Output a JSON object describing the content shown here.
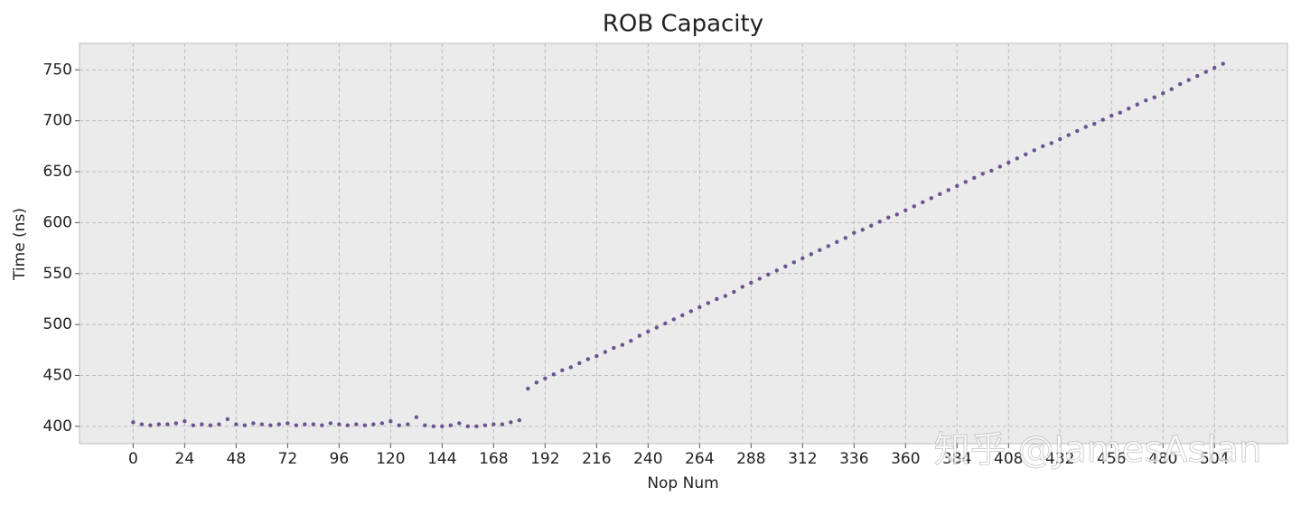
{
  "chart_data": {
    "type": "scatter",
    "title": "ROB Capacity",
    "x_label": "Nop Num",
    "y_label": "Time (ns)",
    "watermark": "知乎 @JamesAslan",
    "color": "#6b5290",
    "grid": true,
    "xlim": [
      -25,
      538
    ],
    "ylim": [
      383,
      776
    ],
    "xticks": [
      0,
      24,
      48,
      72,
      96,
      120,
      144,
      168,
      192,
      216,
      240,
      264,
      288,
      312,
      336,
      360,
      384,
      408,
      432,
      456,
      480,
      504
    ],
    "yticks": [
      400,
      450,
      500,
      550,
      600,
      650,
      700,
      750
    ],
    "x": [
      0,
      4,
      8,
      12,
      16,
      20,
      24,
      28,
      32,
      36,
      40,
      44,
      48,
      52,
      56,
      60,
      64,
      68,
      72,
      76,
      80,
      84,
      88,
      92,
      96,
      100,
      104,
      108,
      112,
      116,
      120,
      124,
      128,
      132,
      136,
      140,
      144,
      148,
      152,
      156,
      160,
      164,
      168,
      172,
      176,
      180,
      184,
      188,
      192,
      196,
      200,
      204,
      208,
      212,
      216,
      220,
      224,
      228,
      232,
      236,
      240,
      244,
      248,
      252,
      256,
      260,
      264,
      268,
      272,
      276,
      280,
      284,
      288,
      292,
      296,
      300,
      304,
      308,
      312,
      316,
      320,
      324,
      328,
      332,
      336,
      340,
      344,
      348,
      352,
      356,
      360,
      364,
      368,
      372,
      376,
      380,
      384,
      388,
      392,
      396,
      400,
      404,
      408,
      412,
      416,
      420,
      424,
      428,
      432,
      436,
      440,
      444,
      448,
      452,
      456,
      460,
      464,
      468,
      472,
      476,
      480,
      484,
      488,
      492,
      496,
      500,
      504,
      508
    ],
    "values": [
      404,
      402,
      401,
      402,
      402,
      403,
      405,
      401,
      402,
      401,
      402,
      407,
      402,
      401,
      403,
      402,
      401,
      402,
      403,
      401,
      402,
      402,
      401,
      403,
      402,
      401,
      402,
      401,
      402,
      403,
      405,
      401,
      402,
      409,
      401,
      400,
      400,
      401,
      403,
      400,
      400,
      401,
      402,
      402,
      404,
      406,
      437,
      443,
      447,
      451,
      455,
      458,
      462,
      466,
      469,
      473,
      477,
      480,
      484,
      489,
      493,
      497,
      501,
      505,
      509,
      513,
      517,
      521,
      525,
      528,
      532,
      537,
      541,
      545,
      549,
      553,
      557,
      561,
      565,
      569,
      573,
      577,
      581,
      585,
      590,
      593,
      597,
      601,
      605,
      608,
      612,
      616,
      620,
      624,
      628,
      632,
      636,
      640,
      644,
      648,
      651,
      655,
      659,
      663,
      667,
      671,
      675,
      678,
      682,
      686,
      690,
      694,
      697,
      701,
      705,
      708,
      712,
      716,
      720,
      723,
      727,
      731,
      736,
      740,
      744,
      748,
      752,
      756
    ]
  }
}
